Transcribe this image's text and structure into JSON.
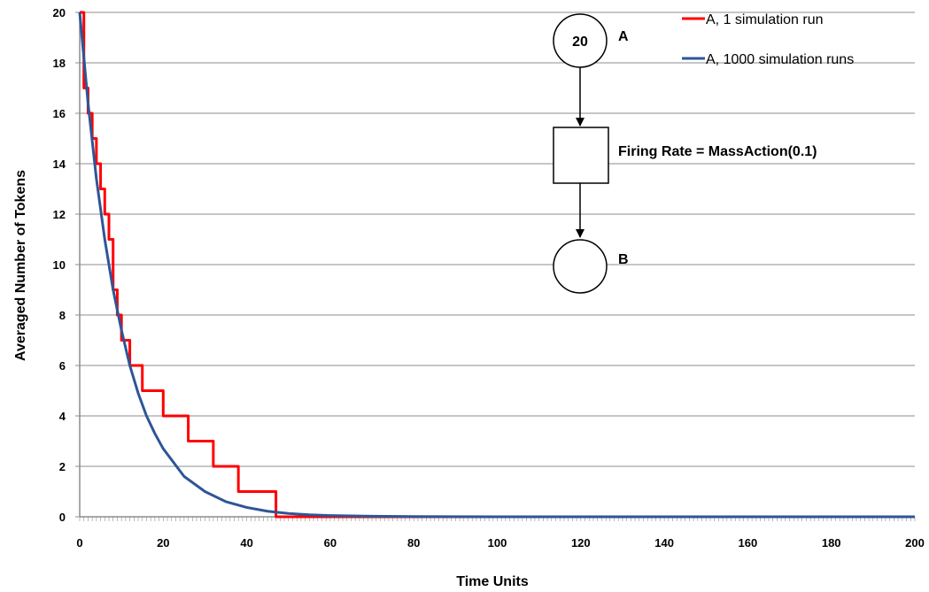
{
  "chart_data": {
    "type": "line",
    "title": "",
    "xlabel": "Time Units",
    "ylabel": "Averaged Number of Tokens",
    "xlim": [
      0,
      200
    ],
    "ylim": [
      0,
      20
    ],
    "xticks": [
      0,
      20,
      40,
      60,
      80,
      100,
      120,
      140,
      160,
      180,
      200
    ],
    "yticks": [
      0,
      2,
      4,
      6,
      8,
      10,
      12,
      14,
      16,
      18,
      20
    ],
    "grid": "horizontal",
    "legend_position": "top-right",
    "series": [
      {
        "name": "A, 1 simulation run",
        "color": "#ff0000",
        "step": true,
        "x": [
          0,
          1,
          2,
          3,
          4,
          5,
          6,
          7,
          8,
          9,
          10,
          12,
          15,
          20,
          26,
          32,
          38,
          47,
          200
        ],
        "y": [
          20,
          17,
          16,
          15,
          14,
          13,
          12,
          11,
          9,
          8,
          7,
          6,
          5,
          4,
          3,
          2,
          1,
          0,
          0
        ]
      },
      {
        "name": "A, 1000 simulation runs",
        "color": "#2e5597",
        "x": [
          0,
          2,
          4,
          6,
          8,
          10,
          12,
          14,
          16,
          18,
          20,
          25,
          30,
          35,
          40,
          45,
          50,
          55,
          60,
          70,
          80,
          100,
          150,
          200
        ],
        "y": [
          20,
          16.4,
          13.4,
          11.0,
          9.0,
          7.4,
          6.0,
          4.9,
          4.0,
          3.3,
          2.7,
          1.6,
          1.0,
          0.6,
          0.37,
          0.22,
          0.13,
          0.08,
          0.05,
          0.02,
          0.01,
          0,
          0,
          0
        ]
      }
    ]
  },
  "petri_net": {
    "place_a_tokens": "20",
    "place_a_label": "A",
    "place_b_label": "B",
    "transition_label": "Firing Rate = MassAction(0.1)"
  },
  "colors": {
    "grid": "#8c8c8c",
    "axis": "#8c8c8c"
  }
}
